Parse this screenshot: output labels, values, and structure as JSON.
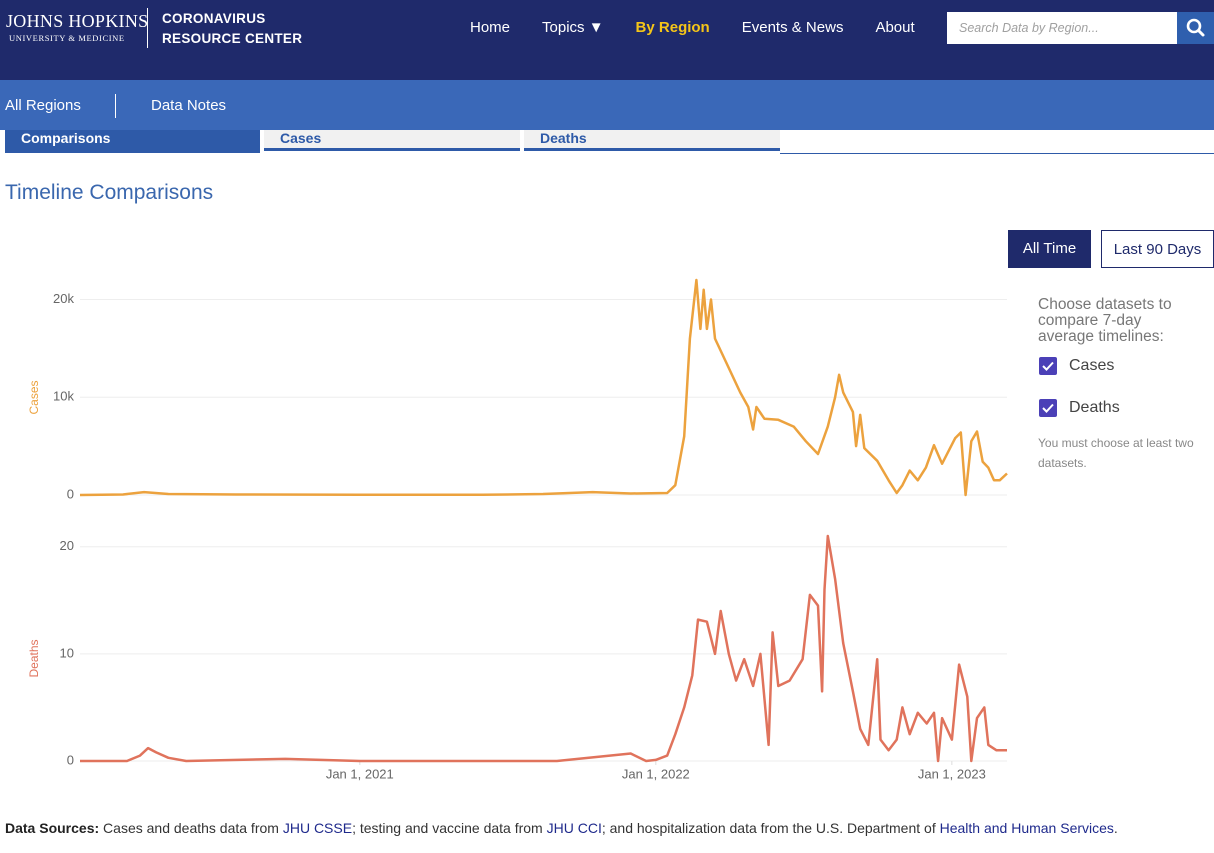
{
  "header": {
    "logo": "JOHNS HOPKINS",
    "logo_sub": "UNIVERSITY & MEDICINE",
    "site_name": [
      "CORONAVIRUS",
      "RESOURCE CENTER"
    ],
    "nav": [
      "Home",
      "Topics ▼",
      "By Region",
      "Events & News",
      "About"
    ],
    "active_nav": 2,
    "search_placeholder": "Search Data by Region..."
  },
  "subnav": [
    "All Regions",
    "Data Notes"
  ],
  "tabs": [
    "Comparisons",
    "Cases",
    "Deaths"
  ],
  "page_title": "Timeline Comparisons",
  "range_buttons": [
    "All Time",
    "Last 90 Days"
  ],
  "sidebar": {
    "prompt": "Choose datasets to compare 7-day average timelines:",
    "options": [
      {
        "label": "Cases",
        "checked": true
      },
      {
        "label": "Deaths",
        "checked": true
      }
    ],
    "note": "You must choose at least two datasets."
  },
  "chart_data": [
    {
      "type": "line",
      "ylabel": "Cases",
      "xlim": [
        "2020-01-22",
        "2023-03-10"
      ],
      "ylim": [
        0,
        22000
      ],
      "yticks": [
        0,
        {
          "value": 10000,
          "label": "10k"
        },
        {
          "value": 20000,
          "label": "20k"
        }
      ],
      "grid": true,
      "series": [
        {
          "name": "Cases",
          "color": "#eca23e",
          "x": [
            "2020-01-22",
            "2020-03-15",
            "2020-04-10",
            "2020-05-10",
            "2020-08-01",
            "2021-01-01",
            "2021-06-01",
            "2021-08-15",
            "2021-10-15",
            "2021-12-01",
            "2022-01-15",
            "2022-01-25",
            "2022-02-05",
            "2022-02-12",
            "2022-02-20",
            "2022-02-25",
            "2022-03-01",
            "2022-03-05",
            "2022-03-10",
            "2022-03-15",
            "2022-04-01",
            "2022-04-15",
            "2022-04-25",
            "2022-05-01",
            "2022-05-05",
            "2022-05-15",
            "2022-06-01",
            "2022-06-20",
            "2022-07-05",
            "2022-07-20",
            "2022-08-01",
            "2022-08-10",
            "2022-08-15",
            "2022-08-20",
            "2022-09-01",
            "2022-09-05",
            "2022-09-10",
            "2022-09-15",
            "2022-10-01",
            "2022-10-15",
            "2022-10-25",
            "2022-11-01",
            "2022-11-10",
            "2022-11-20",
            "2022-11-30",
            "2022-12-10",
            "2022-12-20",
            "2023-01-05",
            "2023-01-12",
            "2023-01-18",
            "2023-01-25",
            "2023-02-01",
            "2023-02-08",
            "2023-02-15",
            "2023-02-22",
            "2023-03-01",
            "2023-03-10"
          ],
          "values": [
            0,
            50,
            300,
            100,
            50,
            30,
            20,
            100,
            300,
            150,
            200,
            1000,
            6000,
            16000,
            22000,
            17000,
            21000,
            17000,
            20000,
            16000,
            13000,
            10500,
            9000,
            6700,
            9000,
            7800,
            7700,
            7000,
            5500,
            4200,
            7000,
            10000,
            12300,
            10500,
            8500,
            5000,
            8200,
            4800,
            3500,
            1500,
            200,
            1000,
            2500,
            1500,
            2800,
            5100,
            3200,
            5800,
            6400,
            0,
            5500,
            6500,
            3400,
            2800,
            1500,
            1500,
            2200
          ]
        }
      ]
    },
    {
      "type": "line",
      "ylabel": "Deaths",
      "xlim": [
        "2020-01-22",
        "2023-03-10"
      ],
      "ylim": [
        0,
        21
      ],
      "yticks": [
        0,
        10,
        20
      ],
      "xticks": [
        {
          "value": "2021-01-01",
          "label": "Jan 1, 2021"
        },
        {
          "value": "2022-01-01",
          "label": "Jan 1, 2022"
        },
        {
          "value": "2023-01-01",
          "label": "Jan 1, 2023"
        }
      ],
      "grid": true,
      "series": [
        {
          "name": "Deaths",
          "color": "#e0735c",
          "x": [
            "2020-01-22",
            "2020-03-20",
            "2020-04-05",
            "2020-04-15",
            "2020-04-25",
            "2020-05-10",
            "2020-06-01",
            "2020-10-01",
            "2021-01-01",
            "2021-09-01",
            "2021-12-01",
            "2021-12-20",
            "2022-01-01",
            "2022-01-15",
            "2022-01-25",
            "2022-02-05",
            "2022-02-15",
            "2022-02-22",
            "2022-03-05",
            "2022-03-15",
            "2022-03-22",
            "2022-04-01",
            "2022-04-10",
            "2022-04-20",
            "2022-05-01",
            "2022-05-10",
            "2022-05-20",
            "2022-05-25",
            "2022-06-01",
            "2022-06-15",
            "2022-07-01",
            "2022-07-10",
            "2022-07-20",
            "2022-07-25",
            "2022-07-28",
            "2022-08-01",
            "2022-08-10",
            "2022-08-20",
            "2022-09-01",
            "2022-09-10",
            "2022-09-20",
            "2022-10-01",
            "2022-10-05",
            "2022-10-15",
            "2022-10-25",
            "2022-11-01",
            "2022-11-10",
            "2022-11-20",
            "2022-12-01",
            "2022-12-10",
            "2022-12-15",
            "2022-12-20",
            "2023-01-01",
            "2023-01-10",
            "2023-01-20",
            "2023-01-25",
            "2023-02-01",
            "2023-02-10",
            "2023-02-15",
            "2023-02-25",
            "2023-03-10"
          ],
          "values": [
            0,
            0,
            0.5,
            1.2,
            0.8,
            0.3,
            0,
            0.2,
            0,
            0,
            0.7,
            0,
            0.1,
            0.5,
            2.5,
            5,
            8,
            13.2,
            13,
            10,
            14,
            10,
            7.5,
            9.5,
            7,
            10,
            1.5,
            12,
            7,
            7.5,
            9.5,
            15.5,
            14.5,
            6.5,
            16,
            21,
            17,
            11,
            6.5,
            3,
            1.5,
            9.5,
            2,
            1,
            2,
            5,
            2.5,
            4.5,
            3.5,
            4.5,
            0,
            4,
            2,
            9,
            6,
            0,
            4,
            5,
            1.5,
            1,
            1
          ]
        }
      ]
    }
  ],
  "footer": {
    "label": "Data Sources:",
    "segments": [
      {
        "text": " Cases and deaths data from ",
        "link": false
      },
      {
        "text": "JHU CSSE",
        "link": true
      },
      {
        "text": "; testing and vaccine data from ",
        "link": false
      },
      {
        "text": "JHU CCI",
        "link": true
      },
      {
        "text": "; and hospitalization data from the U.S. Department of ",
        "link": false
      },
      {
        "text": "Health and Human Services",
        "link": true
      },
      {
        "text": ".",
        "link": false
      }
    ]
  }
}
